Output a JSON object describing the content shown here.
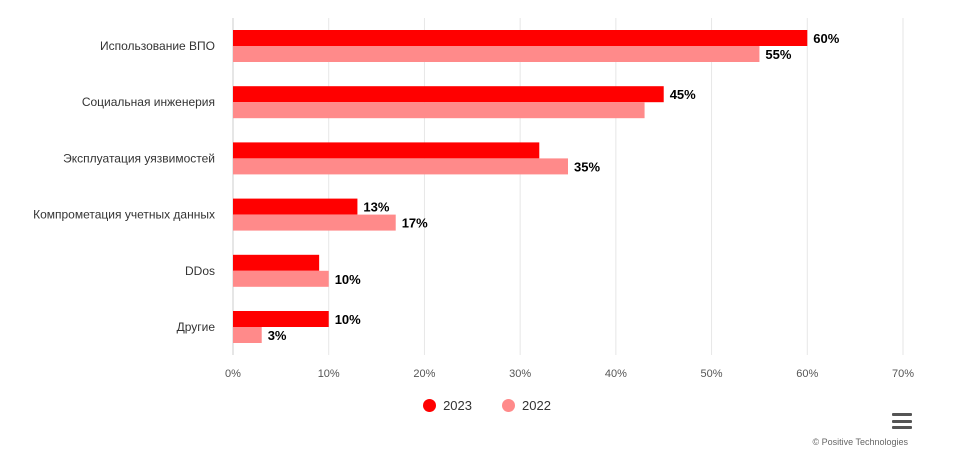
{
  "chart_data": {
    "type": "bar",
    "orientation": "horizontal",
    "categories": [
      "Использование ВПО",
      "Социальная инженерия",
      "Эксплуатация уязвимостей",
      "Компрометация учетных данных",
      "DDos",
      "Другие"
    ],
    "series": [
      {
        "name": "2023",
        "color": "#ff0000",
        "values": [
          60,
          45,
          32,
          13,
          9,
          10
        ],
        "labels": [
          "60%",
          "45%",
          "",
          "13%",
          "",
          "10%"
        ]
      },
      {
        "name": "2022",
        "color": "#ff8a8a",
        "values": [
          55,
          43,
          35,
          17,
          10,
          3
        ],
        "labels": [
          "55%",
          "",
          "35%",
          "17%",
          "10%",
          "3%"
        ]
      }
    ],
    "xlim": [
      0,
      70
    ],
    "xticks": [
      "0%",
      "10%",
      "20%",
      "30%",
      "40%",
      "50%",
      "60%",
      "70%"
    ],
    "grid": true,
    "legend": "bottom-center"
  },
  "legend_items": [
    {
      "label": "2023",
      "color": "#ff0000"
    },
    {
      "label": "2022",
      "color": "#ff8a8a"
    }
  ],
  "menu_icon": "hamburger-menu-icon",
  "credits": "© Positive Technologies"
}
